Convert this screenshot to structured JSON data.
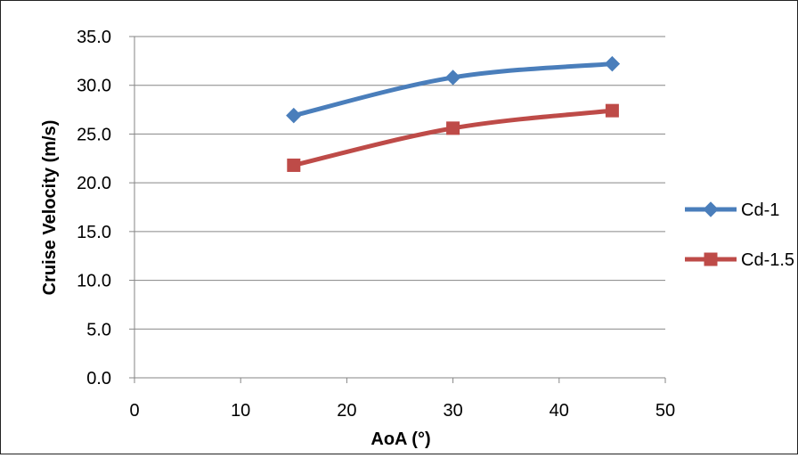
{
  "chart_data": {
    "type": "line",
    "title": "",
    "xlabel": "AoA (°)",
    "ylabel": "Cruise Velocity (m/s)",
    "xlim": [
      0,
      50
    ],
    "ylim": [
      0,
      35
    ],
    "x_ticks": [
      "0",
      "10",
      "20",
      "30",
      "40",
      "50"
    ],
    "y_ticks": [
      "0.0",
      "5.0",
      "10.0",
      "15.0",
      "20.0",
      "25.0",
      "30.0",
      "35.0"
    ],
    "grid": "horizontal",
    "legend_position": "right",
    "series": [
      {
        "name": "Cd-1",
        "color": "#4a7ebb",
        "marker": "diamond",
        "x": [
          15,
          30,
          45
        ],
        "y": [
          26.9,
          30.8,
          32.2
        ]
      },
      {
        "name": "Cd-1.5",
        "color": "#be4b48",
        "marker": "square",
        "x": [
          15,
          30,
          45
        ],
        "y": [
          21.8,
          25.6,
          27.4
        ]
      }
    ]
  }
}
